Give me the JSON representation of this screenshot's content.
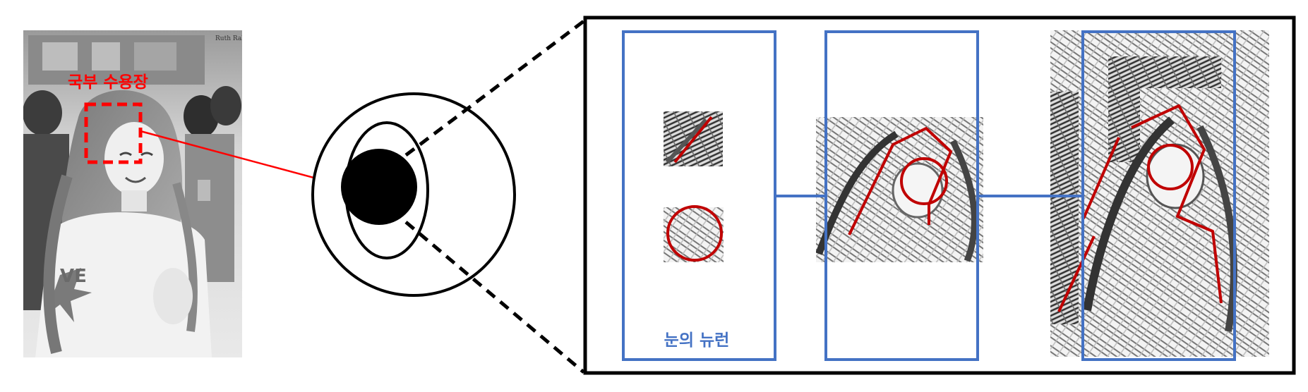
{
  "labels": {
    "receptive_field": "국부 수용장",
    "eye_neuron": "눈의 뉴런"
  },
  "photo": {
    "watermark": "Ruth Rabbit"
  },
  "colors": {
    "background": "#ffffff",
    "annotation_red": "#ff0000",
    "stroke_dark_red": "#c00000",
    "box_blue": "#4472c4",
    "outline_black": "#000000"
  },
  "icons": {
    "eye": "eye-icon",
    "person_photo": "photo-of-person",
    "receptive_field_box": "dashed-square"
  }
}
